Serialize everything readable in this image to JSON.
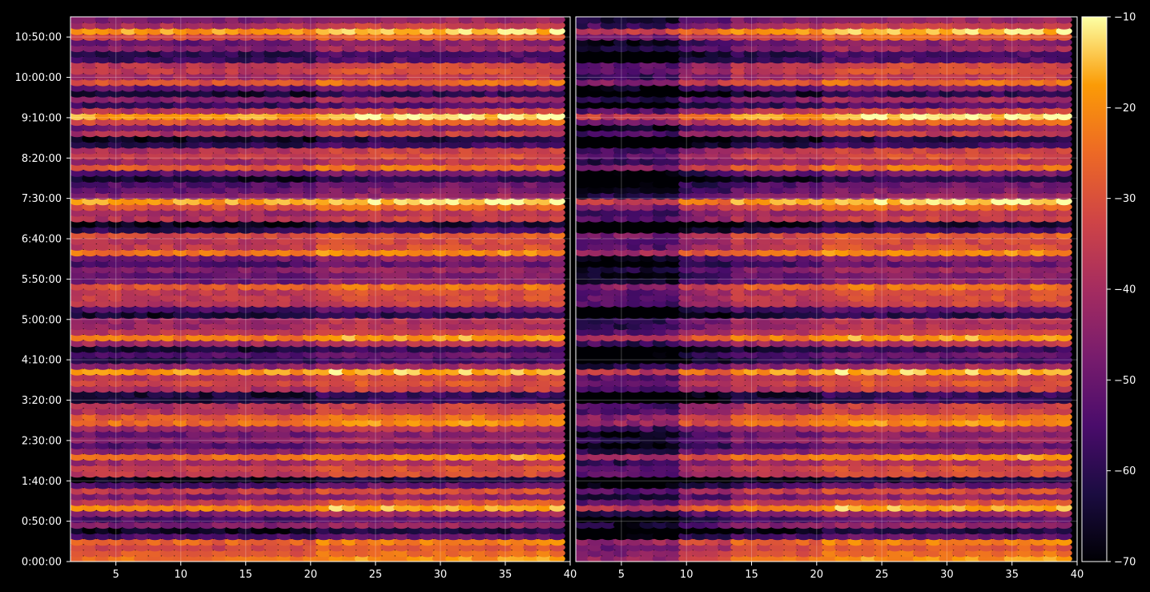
{
  "chart_data": {
    "type": "heatmap",
    "colormap": "inferno",
    "background_color": "#000000",
    "axis_color": "#ffffff",
    "grid": true,
    "panels": [
      {
        "name": "left",
        "x_ticks": [
          "5",
          "10",
          "15",
          "20",
          "25",
          "30",
          "35",
          "40"
        ],
        "x_tick_values": [
          5,
          10,
          15,
          20,
          25,
          30,
          35,
          40
        ],
        "xlim": [
          1.5,
          40
        ]
      },
      {
        "name": "right",
        "x_ticks": [
          "5",
          "10",
          "15",
          "20",
          "25",
          "30",
          "35",
          "40"
        ],
        "x_tick_values": [
          5,
          10,
          15,
          20,
          25,
          30,
          35,
          40
        ],
        "xlim": [
          1.5,
          40
        ]
      }
    ],
    "x_range": [
      2,
      39
    ],
    "y_ticks": [
      "0:00:00",
      "0:50:00",
      "1:40:00",
      "2:30:00",
      "3:20:00",
      "4:10:00",
      "5:00:00",
      "5:50:00",
      "6:40:00",
      "7:30:00",
      "8:20:00",
      "9:10:00",
      "10:00:00",
      "10:50:00"
    ],
    "y_tick_minutes": [
      0,
      50,
      100,
      150,
      200,
      250,
      300,
      350,
      400,
      450,
      500,
      550,
      600,
      650
    ],
    "ylim_minutes": [
      0,
      675
    ],
    "rows": 96,
    "colorbar": {
      "ticks": [
        "−10",
        "−20",
        "−30",
        "−40",
        "−50",
        "−60",
        "−70"
      ],
      "tick_values": [
        -10,
        -20,
        -30,
        -40,
        -50,
        -60,
        -70
      ],
      "vmin": -70,
      "vmax": -10
    }
  }
}
